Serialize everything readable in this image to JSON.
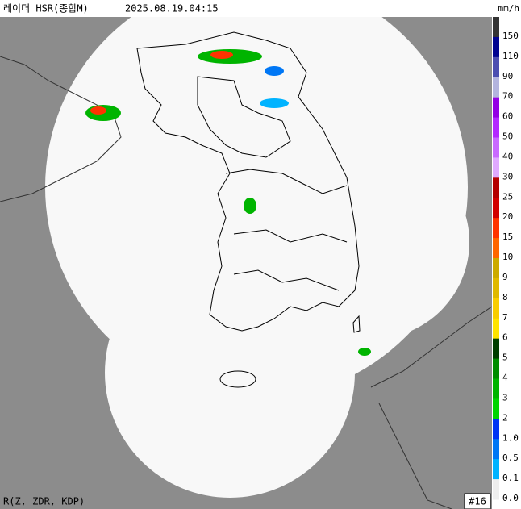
{
  "header": {
    "title": "레이더 HSR(종합M)",
    "time": "2025.08.19.04:15"
  },
  "legend": {
    "unit": "mm/h",
    "items": [
      {
        "label": "150",
        "color": "#333333"
      },
      {
        "label": "110",
        "color": "#000390"
      },
      {
        "label": "90",
        "color": "#4c4eb1"
      },
      {
        "label": "70",
        "color": "#b3b4de"
      },
      {
        "label": "60",
        "color": "#9300e4"
      },
      {
        "label": "50",
        "color": "#b329ff"
      },
      {
        "label": "40",
        "color": "#c969ff"
      },
      {
        "label": "30",
        "color": "#e0a9ff"
      },
      {
        "label": "25",
        "color": "#b40000"
      },
      {
        "label": "20",
        "color": "#d20000"
      },
      {
        "label": "15",
        "color": "#ff3300"
      },
      {
        "label": "10",
        "color": "#ff6600"
      },
      {
        "label": "9",
        "color": "#ccaa00"
      },
      {
        "label": "8",
        "color": "#e0b900"
      },
      {
        "label": "7",
        "color": "#f9cd00"
      },
      {
        "label": "6",
        "color": "#ffe400"
      },
      {
        "label": "5",
        "color": "#003e00"
      },
      {
        "label": "4",
        "color": "#008c00"
      },
      {
        "label": "3",
        "color": "#00b400"
      },
      {
        "label": "2",
        "color": "#00d500"
      },
      {
        "label": "1.0",
        "color": "#0033f5"
      },
      {
        "label": "0.5",
        "color": "#0077f5"
      },
      {
        "label": "0.1",
        "color": "#00b3ff"
      },
      {
        "label": "0.0",
        "color": "#eeeeee"
      }
    ]
  },
  "footer": {
    "method": "R(Z, ZDR, KDP)",
    "count": "#16"
  }
}
